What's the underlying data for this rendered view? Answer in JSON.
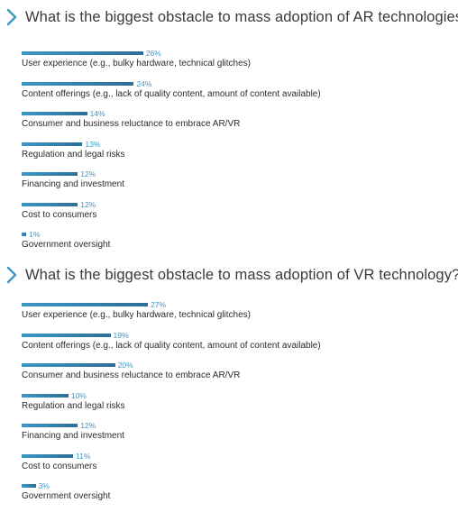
{
  "colors": {
    "accent": "#3d97c6",
    "bar_gradient_start": "#3d97c6",
    "bar_gradient_end": "#2d6f97",
    "text": "#2b2b2b"
  },
  "icons": {
    "heading_marker": "chevron-right-icon"
  },
  "chart_data": [
    {
      "type": "bar",
      "orientation": "horizontal",
      "title": "What is the biggest obstacle to mass adoption of AR technologies?",
      "categories": [
        "User experience (e.g., bulky hardware, technical glitches)",
        "Content offerings (e.g., lack of quality content, amount of content available)",
        "Consumer and business reluctance to embrace AR/VR",
        "Regulation and legal risks",
        "Financing and investment",
        "Cost to consumers",
        "Government oversight"
      ],
      "values": [
        26,
        24,
        14,
        13,
        12,
        12,
        1
      ],
      "value_labels": [
        "26%",
        "24%",
        "14%",
        "13%",
        "12%",
        "12%",
        "1%"
      ],
      "unit": "%",
      "xlim": [
        0,
        27
      ],
      "grid": false
    },
    {
      "type": "bar",
      "orientation": "horizontal",
      "title": "What is the biggest obstacle to mass adoption of VR technology?",
      "categories": [
        "User experience (e.g., bulky hardware, technical glitches)",
        "Content offerings (e.g., lack of quality content, amount of content available)",
        "Consumer and business reluctance to embrace AR/VR",
        "Regulation and legal risks",
        "Financing and investment",
        "Cost to consumers",
        "Government oversight"
      ],
      "values": [
        27,
        19,
        20,
        10,
        12,
        11,
        3
      ],
      "value_labels": [
        "27%",
        "19%",
        "20%",
        "10%",
        "12%",
        "11%",
        "3%"
      ],
      "unit": "%",
      "xlim": [
        0,
        27
      ],
      "grid": false
    }
  ]
}
